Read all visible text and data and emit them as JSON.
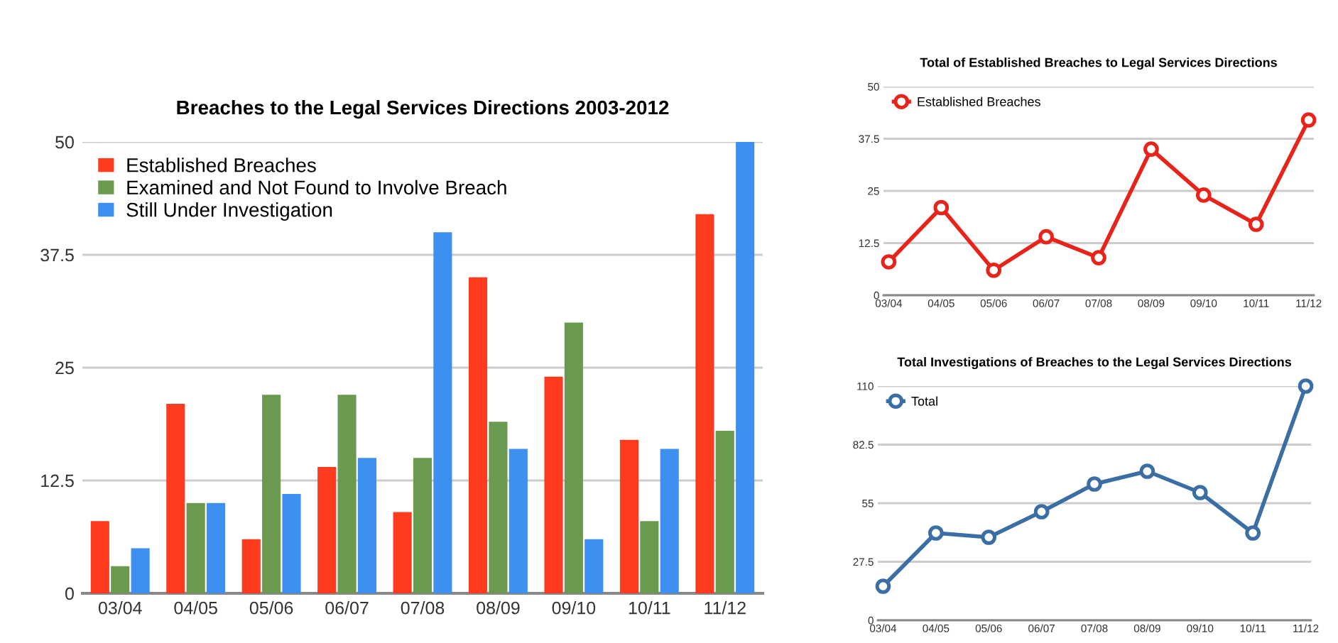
{
  "chart_data": [
    {
      "type": "bar",
      "title": "Breaches to the Legal Services Directions 2003-2012",
      "categories": [
        "03/04",
        "04/05",
        "05/06",
        "06/07",
        "07/08",
        "08/09",
        "09/10",
        "10/11",
        "11/12"
      ],
      "series": [
        {
          "name": "Established Breaches",
          "color": "#ff3b1f",
          "values": [
            8,
            21,
            6,
            14,
            9,
            35,
            24,
            17,
            42
          ]
        },
        {
          "name": "Examined and Not Found to Involve Breach",
          "color": "#6a9a50",
          "values": [
            3,
            10,
            22,
            22,
            15,
            19,
            30,
            8,
            18
          ]
        },
        {
          "name": "Still Under Investigation",
          "color": "#3d8ff0",
          "values": [
            5,
            10,
            11,
            15,
            40,
            16,
            6,
            16,
            50
          ]
        }
      ],
      "ylim": [
        0,
        50
      ],
      "yticks": [
        0,
        12.5,
        25,
        37.5,
        50
      ],
      "grid": "y",
      "legend": "top left"
    },
    {
      "type": "line",
      "title": "Total of Established Breaches to Legal Services Directions",
      "categories": [
        "03/04",
        "04/05",
        "05/06",
        "06/07",
        "07/08",
        "08/09",
        "09/10",
        "10/11",
        "11/12"
      ],
      "series": [
        {
          "name": "Established Breaches",
          "color": "#e8231a",
          "values": [
            8,
            21,
            6,
            14,
            9,
            35,
            24,
            17,
            42
          ]
        }
      ],
      "ylim": [
        0,
        50
      ],
      "yticks": [
        0,
        12.5,
        25,
        37.5,
        50
      ],
      "grid": "y",
      "legend": "top left",
      "marker": "circle",
      "line_style": "solid"
    },
    {
      "type": "line",
      "title": "Total Investigations of Breaches to the Legal Services Directions",
      "categories": [
        "03/04",
        "04/05",
        "05/06",
        "06/07",
        "07/08",
        "08/09",
        "09/10",
        "10/11",
        "11/12"
      ],
      "series": [
        {
          "name": "Total",
          "color": "#3a6ea5",
          "values": [
            16,
            41,
            39,
            51,
            64,
            70,
            60,
            41,
            110
          ]
        }
      ],
      "ylim": [
        0,
        110
      ],
      "yticks": [
        0,
        27.5,
        55,
        82.5,
        110
      ],
      "grid": "y",
      "legend": "top left",
      "marker": "circle",
      "line_style": "solid"
    }
  ]
}
